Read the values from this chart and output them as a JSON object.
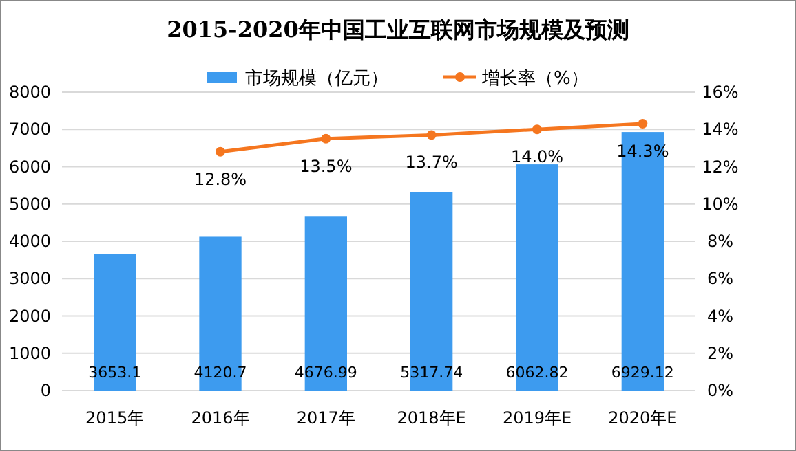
{
  "chart_data": {
    "type": "bar",
    "title": "2015-2020年中国工业互联网市场规模及预测",
    "categories": [
      "2015年",
      "2016年",
      "2017年",
      "2018年E",
      "2019年E",
      "2020年E"
    ],
    "series": [
      {
        "name": "市场规模（亿元）",
        "color": "#3d9bef",
        "values": [
          3653.1,
          4120.7,
          4676.99,
          5317.74,
          6062.82,
          6929.12
        ],
        "value_labels": [
          "3653.1",
          "4120.7",
          "4676.99",
          "5317.74",
          "6062.82",
          "6929.12"
        ]
      },
      {
        "name": "增长率（%）",
        "type": "line",
        "axis": "y2",
        "color": "#f5761f",
        "marker": "circle",
        "values": [
          null,
          12.8,
          13.5,
          13.7,
          14.0,
          14.3
        ],
        "value_labels": [
          null,
          "12.8%",
          "13.5%",
          "13.7%",
          "14.0%",
          "14.3%"
        ]
      }
    ],
    "ylim": [
      0,
      8000
    ],
    "yticks": [
      0,
      1000,
      2000,
      3000,
      4000,
      5000,
      6000,
      7000,
      8000
    ],
    "y2lim": [
      0,
      16
    ],
    "y2ticks": [
      {
        "value": 0,
        "label": "0%"
      },
      {
        "value": 2,
        "label": "2%"
      },
      {
        "value": 4,
        "label": "4%"
      },
      {
        "value": 6,
        "label": "6%"
      },
      {
        "value": 8,
        "label": "8%"
      },
      {
        "value": 10,
        "label": "10%"
      },
      {
        "value": 12,
        "label": "12%"
      },
      {
        "value": 14,
        "label": "14%"
      },
      {
        "value": 16,
        "label": "16%"
      }
    ],
    "grid": "y",
    "legend": "top"
  }
}
